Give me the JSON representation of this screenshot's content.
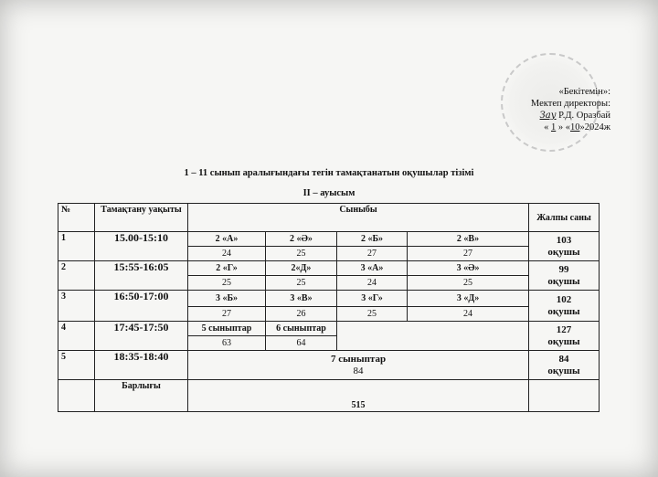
{
  "approval": {
    "line1": "«Бекітемін»:",
    "line2": "Мектеп директоры:",
    "signature": "Зау",
    "name": "Р.Д. Оразбай",
    "day": "1",
    "month": "10",
    "year": "2024ж"
  },
  "title": "1 – 11 сынып аралығындағы тегін тамақтанатын оқушылар тізімі",
  "subtitle": "II – ауысым",
  "headers": {
    "no": "№",
    "time": "Тамақтану уақыты",
    "classes": "Сыныбы",
    "total": "Жалпы саны"
  },
  "rows": [
    {
      "no": "1",
      "time": "15.00-15:10",
      "classes": [
        "2 «А»",
        "2 «Ә»",
        "2 «Б»",
        "2 «В»"
      ],
      "counts": [
        "24",
        "25",
        "27",
        "27"
      ],
      "total": "103",
      "unit": "оқушы"
    },
    {
      "no": "2",
      "time": "15:55-16:05",
      "classes": [
        "2 «Г»",
        "2«Д»",
        "3 «А»",
        "3 «Ә»"
      ],
      "counts": [
        "25",
        "25",
        "24",
        "25"
      ],
      "total": "99",
      "unit": "оқушы"
    },
    {
      "no": "3",
      "time": "16:50-17:00",
      "classes": [
        "3 «Б»",
        "3 «В»",
        "3 «Г»",
        "3 «Д»"
      ],
      "counts": [
        "27",
        "26",
        "25",
        "24"
      ],
      "total": "102",
      "unit": "оқушы"
    },
    {
      "no": "4",
      "time": "17:45-17:50",
      "classes": [
        "5  сыныптар",
        "6 сыныптар"
      ],
      "counts": [
        "63",
        "64"
      ],
      "total": "127",
      "unit": "оқушы"
    },
    {
      "no": "5",
      "time": "18:35-18:40",
      "classes": [
        "7 сыныптар"
      ],
      "counts": [
        "84"
      ],
      "total": "84",
      "unit": "оқушы"
    }
  ],
  "summary": {
    "label": "Барлығы",
    "value": "515"
  }
}
